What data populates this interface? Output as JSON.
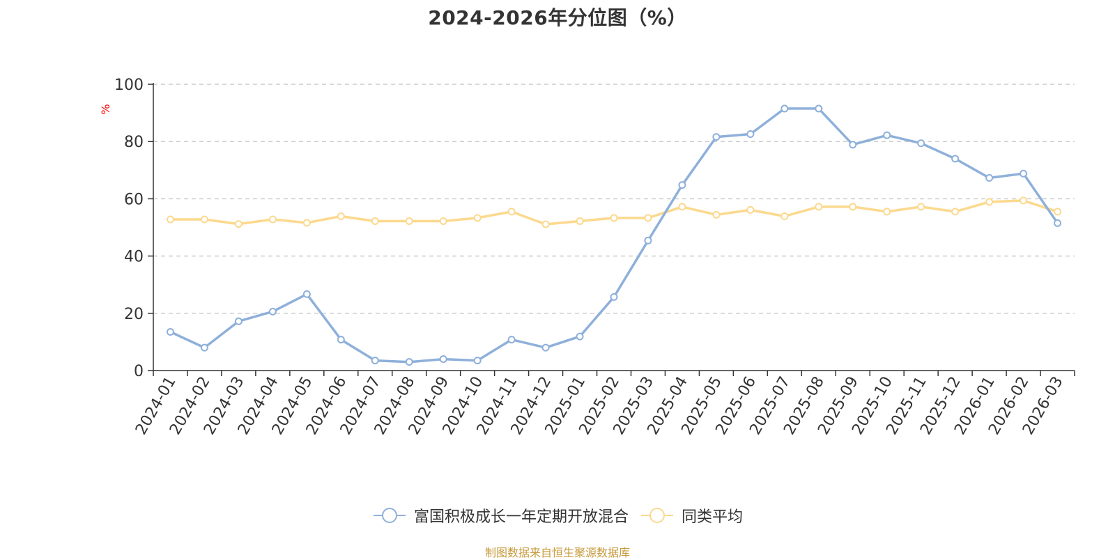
{
  "title": "2024-2026年分位图（%）",
  "source_note": "制图数据来自恒生聚源数据库",
  "colors": {
    "series_1": "#8eb0da",
    "series_2": "#fbd98e",
    "axis": "#333333",
    "grid": "#cccccc",
    "unit_label": "#ff0000"
  },
  "chart_data": {
    "type": "line",
    "title": "2024-2026年分位图（%）",
    "ylabel": "%",
    "xlabel": "",
    "ylim": [
      0,
      100
    ],
    "yticks": [
      0,
      20,
      40,
      60,
      80,
      100
    ],
    "grid": "horizontal dashed",
    "legend_position": "bottom-center",
    "categories": [
      "2024-01",
      "2024-02",
      "2024-03",
      "2024-04",
      "2024-05",
      "2024-06",
      "2024-07",
      "2024-08",
      "2024-09",
      "2024-10",
      "2024-11",
      "2024-12",
      "2025-01",
      "2025-02",
      "2025-03",
      "2025-04",
      "2025-05",
      "2025-06",
      "2025-07",
      "2025-08",
      "2025-09",
      "2025-10",
      "2025-11",
      "2025-12",
      "2026-01",
      "2026-02",
      "2026-03"
    ],
    "series": [
      {
        "name": "富国积极成长一年定期开放混合",
        "color": "#8eb0da",
        "values": [
          13.5,
          8.0,
          17.2,
          20.6,
          26.7,
          10.8,
          3.5,
          3.0,
          4.0,
          3.5,
          10.8,
          8.0,
          11.9,
          25.7,
          45.4,
          64.8,
          81.6,
          82.6,
          91.5,
          91.5,
          78.9,
          82.2,
          79.4,
          74.0,
          67.3,
          68.8,
          51.5
        ]
      },
      {
        "name": "同类平均",
        "color": "#fbd98e",
        "values": [
          52.8,
          52.8,
          51.2,
          52.8,
          51.6,
          53.9,
          52.2,
          52.2,
          52.2,
          53.3,
          55.5,
          51.1,
          52.2,
          53.3,
          53.3,
          57.2,
          54.4,
          56.1,
          53.9,
          57.2,
          57.2,
          55.5,
          57.2,
          55.5,
          58.9,
          59.4,
          55.5
        ]
      }
    ]
  }
}
